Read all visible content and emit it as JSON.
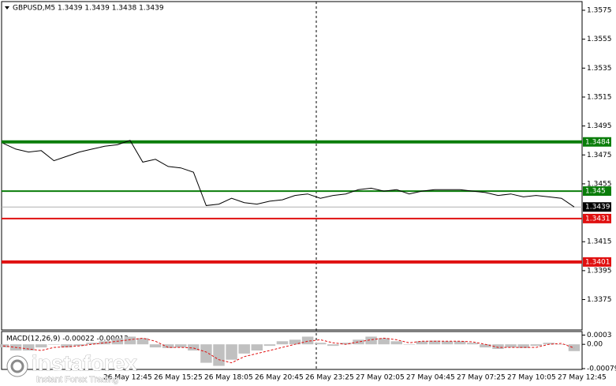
{
  "chart_data": {
    "type": "line",
    "title": "GBPUSD,M5  1.3439 1.3439 1.3438 1.3439",
    "x_labels": [
      "26 May 12:45",
      "26 May 15:25",
      "26 May 18:05",
      "26 May 20:45",
      "26 May 23:25",
      "27 May 02:05",
      "27 May 04:45",
      "27 May 07:25",
      "27 May 10:05",
      "27 May 12:45"
    ],
    "series": [
      {
        "name": "GBPUSD",
        "color": "#000000",
        "values": [
          1.3483,
          1.3479,
          1.3477,
          1.3478,
          1.3471,
          1.3474,
          1.3477,
          1.3479,
          1.3481,
          1.3482,
          1.3485,
          1.347,
          1.3472,
          1.3467,
          1.3466,
          1.3463,
          1.344,
          1.3441,
          1.3445,
          1.3442,
          1.3441,
          1.3443,
          1.3444,
          1.3447,
          1.3448,
          1.3445,
          1.3447,
          1.3448,
          1.3451,
          1.3452,
          1.345,
          1.3451,
          1.3448,
          1.345,
          1.3451,
          1.3451,
          1.3451,
          1.345,
          1.3449,
          1.3447,
          1.3448,
          1.3446,
          1.3447,
          1.3446,
          1.3445,
          1.3439
        ]
      }
    ],
    "ylim": [
      1.3354,
      1.3581
    ],
    "yticks": [
      1.3575,
      1.3555,
      1.3535,
      1.3515,
      1.3495,
      1.3475,
      1.3455,
      1.3415,
      1.3395,
      1.3375
    ],
    "levels": [
      {
        "value": 1.3484,
        "color": "#0a7d0a"
      },
      {
        "value": 1.345,
        "color": "#0a7d0a"
      },
      {
        "value": 1.3431,
        "color": "#e01010"
      },
      {
        "value": 1.3401,
        "color": "#e01010"
      }
    ],
    "current_price": 1.3439,
    "macd": {
      "title": "MACD(12,26,9) -0.00022 -0.00012",
      "histogram": {
        "color": "#c0c0c0",
        "values": [
          -0.0001,
          -0.0002,
          -0.0002,
          -0.0001,
          0,
          -0.0001,
          -5e-05,
          5e-05,
          0.0001,
          0.0002,
          0.00025,
          0.0002,
          -0.0001,
          -0.00012,
          -0.0001,
          -0.0002,
          -0.0006,
          -0.0007,
          -0.0005,
          -0.0003,
          -0.0002,
          -5e-05,
          0.0001,
          0.00015,
          0.00025,
          5e-05,
          -5e-05,
          5e-05,
          0.00015,
          0.00025,
          0.0002,
          0.0001,
          0,
          0.0001,
          0.00012,
          0.0001,
          0.0001,
          5e-05,
          -0.0001,
          -0.00015,
          -0.0001,
          -0.00012,
          -5e-05,
          5e-05,
          0,
          -0.00022
        ]
      },
      "signal": {
        "color": "#e01010",
        "values": [
          -5e-05,
          -0.0001,
          -0.00015,
          -0.0002,
          -0.0001,
          -8e-05,
          -5e-05,
          0,
          5e-05,
          0.0001,
          0.00015,
          0.0002,
          0.0001,
          -0.0001,
          -0.0001,
          -0.00012,
          -0.00025,
          -0.0005,
          -0.0006,
          -0.0004,
          -0.0003,
          -0.0002,
          -0.0001,
          0,
          0.0001,
          0.00015,
          5e-05,
          0,
          8e-05,
          0.00015,
          0.0002,
          0.00015,
          5e-05,
          0.0001,
          0.0001,
          0.0001,
          0.0001,
          8e-05,
          0,
          -0.0001,
          -0.0001,
          -0.0001,
          -0.0001,
          0,
          3e-05,
          -0.00012
        ]
      },
      "ylim": [
        -0.00079,
        0.00039
      ],
      "yticks": [
        0.0003,
        {
          "value": 0,
          "label": "0.00"
        },
        -0.00079
      ]
    }
  },
  "watermark": {
    "brand": "instaforex",
    "tagline": "Instant Forex Trading"
  }
}
